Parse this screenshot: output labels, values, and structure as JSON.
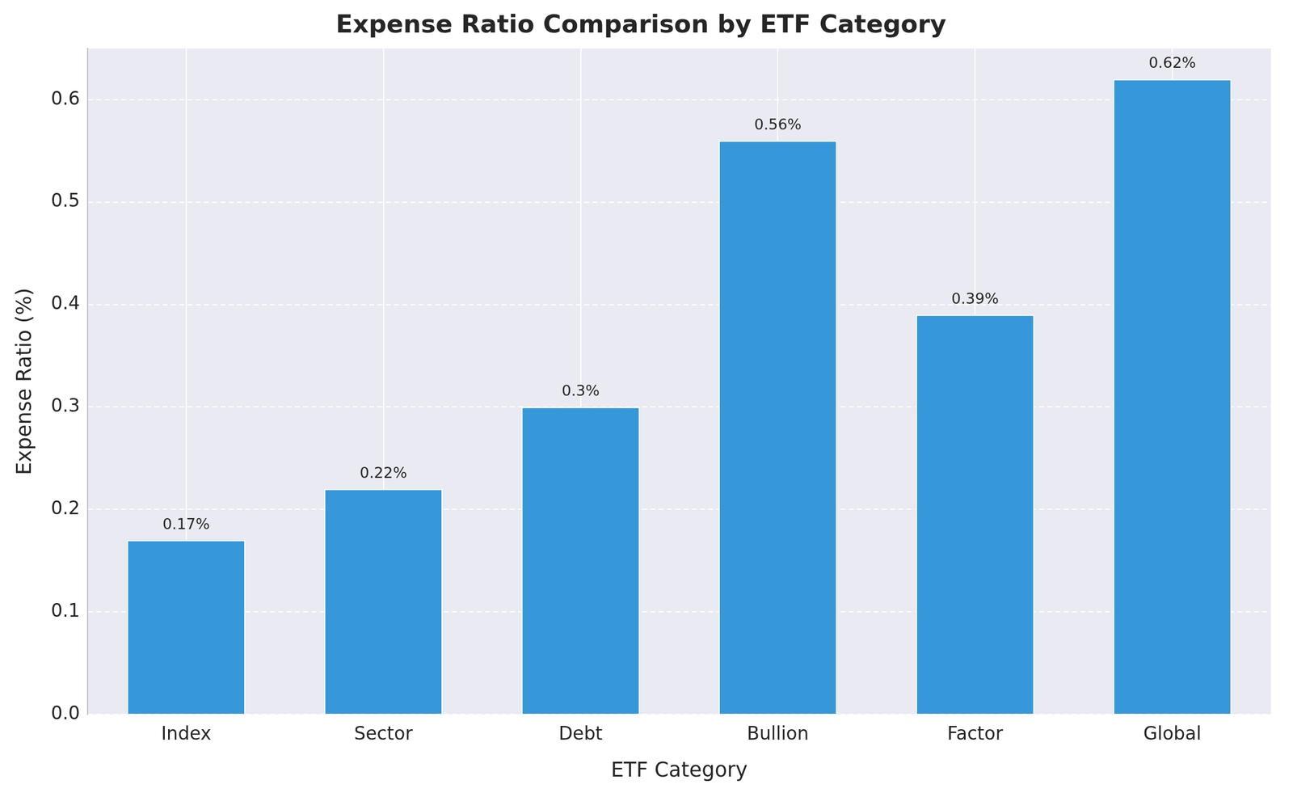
{
  "chart_data": {
    "type": "bar",
    "title": "Expense Ratio Comparison by ETF Category",
    "x_label": "ETF Category",
    "y_label": "Expense Ratio (%)",
    "categories": [
      "Index",
      "Sector",
      "Debt",
      "Bullion",
      "Factor",
      "Global"
    ],
    "values": [
      0.17,
      0.22,
      0.3,
      0.56,
      0.39,
      0.62
    ],
    "value_labels": [
      "0.17%",
      "0.22%",
      "0.3%",
      "0.56%",
      "0.39%",
      "0.62%"
    ],
    "color": "#3697d9",
    "ylim": [
      0,
      0.65
    ],
    "yticks": [
      {
        "value": 0,
        "label": "0.0"
      },
      0.1,
      0.2,
      0.3,
      0.4,
      0.5,
      0.6
    ],
    "grid": true,
    "data_labels": true
  }
}
